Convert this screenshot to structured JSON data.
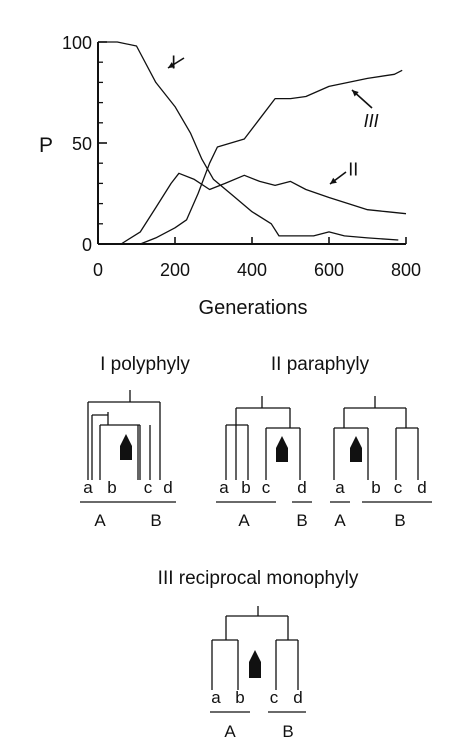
{
  "chart_data": {
    "type": "line",
    "xlabel": "Generations",
    "ylabel": "P",
    "xlim": [
      0,
      800
    ],
    "ylim": [
      0,
      100
    ],
    "x_ticks": [
      "0",
      "200",
      "400",
      "600",
      "800"
    ],
    "y_ticks": [
      "0",
      "50",
      "100"
    ],
    "grid": false,
    "series": [
      {
        "name": "I",
        "points": [
          [
            0,
            100
          ],
          [
            50,
            100
          ],
          [
            100,
            98
          ],
          [
            150,
            80
          ],
          [
            200,
            68
          ],
          [
            240,
            55
          ],
          [
            270,
            42
          ],
          [
            300,
            32
          ],
          [
            350,
            24
          ],
          [
            400,
            16
          ],
          [
            450,
            10
          ],
          [
            470,
            4
          ],
          [
            520,
            4
          ],
          [
            560,
            4
          ],
          [
            600,
            6
          ],
          [
            640,
            4
          ],
          [
            700,
            3
          ],
          [
            780,
            2
          ]
        ]
      },
      {
        "name": "II",
        "points": [
          [
            60,
            0
          ],
          [
            110,
            6
          ],
          [
            150,
            18
          ],
          [
            190,
            30
          ],
          [
            210,
            35
          ],
          [
            250,
            32
          ],
          [
            290,
            27
          ],
          [
            330,
            30
          ],
          [
            380,
            34
          ],
          [
            420,
            31
          ],
          [
            460,
            29
          ],
          [
            500,
            31
          ],
          [
            540,
            27
          ],
          [
            600,
            23
          ],
          [
            650,
            20
          ],
          [
            700,
            17
          ],
          [
            750,
            16
          ],
          [
            800,
            15
          ]
        ]
      },
      {
        "name": "III",
        "points": [
          [
            110,
            0
          ],
          [
            150,
            3
          ],
          [
            200,
            8
          ],
          [
            230,
            12
          ],
          [
            260,
            25
          ],
          [
            290,
            40
          ],
          [
            310,
            48
          ],
          [
            380,
            52
          ],
          [
            420,
            62
          ],
          [
            460,
            72
          ],
          [
            500,
            72
          ],
          [
            540,
            73
          ],
          [
            600,
            78
          ],
          [
            650,
            80
          ],
          [
            700,
            82
          ],
          [
            770,
            84
          ],
          [
            790,
            86
          ]
        ]
      }
    ],
    "annotations": [
      {
        "label": "I",
        "x": 190,
        "y": 87
      },
      {
        "label": "II",
        "x": 650,
        "y": 34
      },
      {
        "label": "III",
        "x": 690,
        "y": 58
      }
    ]
  },
  "trees": {
    "polyphyly": {
      "title": "I polyphyly",
      "tips": [
        "a",
        "b",
        "c",
        "d"
      ],
      "groups": [
        "A",
        "B"
      ]
    },
    "paraphyly": {
      "title": "II paraphyly",
      "left": {
        "tips": [
          "a",
          "b",
          "c",
          "d"
        ],
        "groups": [
          "A",
          "B"
        ]
      },
      "right": {
        "tips": [
          "a",
          "b",
          "c",
          "d"
        ],
        "groups": [
          "A",
          "B"
        ]
      }
    },
    "monophyly": {
      "title": "III reciprocal monophyly",
      "tips": [
        "a",
        "b",
        "c",
        "d"
      ],
      "groups": [
        "A",
        "B"
      ]
    }
  }
}
